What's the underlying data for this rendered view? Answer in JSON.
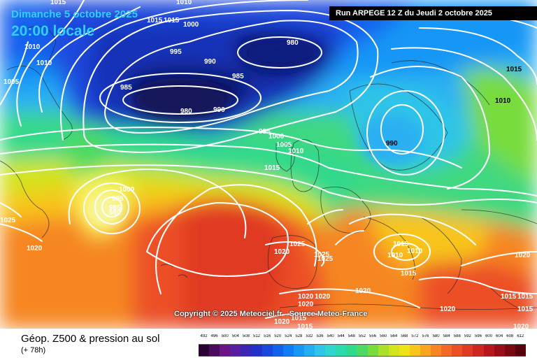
{
  "header": {
    "date": "Dimanche 5 octobre 2025",
    "time": "20:00 locale",
    "run": "Run ARPEGE 12 Z du Jeudi 2 octobre 2025"
  },
  "map": {
    "copyright": "Copyright © 2025 Meteociel.fr - Source Meteo-France",
    "pressure_labels": [
      {
        "id": "l1",
        "text": "1015",
        "color": "white"
      },
      {
        "id": "l2",
        "text": "1010",
        "color": "white"
      },
      {
        "id": "l3",
        "text": "1015",
        "color": "white"
      },
      {
        "id": "l4",
        "text": "1015",
        "color": "white"
      },
      {
        "id": "l5",
        "text": "1000",
        "color": "white"
      },
      {
        "id": "l6",
        "text": "1010",
        "color": "white"
      },
      {
        "id": "l7",
        "text": "1010",
        "color": "white"
      },
      {
        "id": "l8",
        "text": "1005",
        "color": "white"
      },
      {
        "id": "l9",
        "text": "995",
        "color": "white"
      },
      {
        "id": "l10",
        "text": "990",
        "color": "white"
      },
      {
        "id": "l11",
        "text": "985",
        "color": "white"
      },
      {
        "id": "l12",
        "text": "980",
        "color": "white"
      },
      {
        "id": "l13",
        "text": "985",
        "color": "white"
      },
      {
        "id": "l14",
        "text": "980",
        "color": "white"
      },
      {
        "id": "l15",
        "text": "990",
        "color": "white"
      },
      {
        "id": "l16",
        "text": "995",
        "color": "white"
      },
      {
        "id": "l17",
        "text": "1000",
        "color": "white"
      },
      {
        "id": "l18",
        "text": "1005",
        "color": "white"
      },
      {
        "id": "l19",
        "text": "1010",
        "color": "white"
      },
      {
        "id": "l20",
        "text": "1015",
        "color": "white"
      },
      {
        "id": "l21",
        "text": "990",
        "color": "dark"
      },
      {
        "id": "l22",
        "text": "1015",
        "color": "dark"
      },
      {
        "id": "l23",
        "text": "1010",
        "color": "dark"
      },
      {
        "id": "l24",
        "text": "1000",
        "color": "white"
      },
      {
        "id": "l25",
        "text": "995",
        "color": "white"
      },
      {
        "id": "l26",
        "text": "985",
        "color": "white"
      },
      {
        "id": "l27",
        "text": "980",
        "color": "white"
      },
      {
        "id": "l28",
        "text": "1025",
        "color": "white"
      },
      {
        "id": "l29",
        "text": "1020",
        "color": "white"
      },
      {
        "id": "l30",
        "text": "1025",
        "color": "white"
      },
      {
        "id": "l31",
        "text": "1020",
        "color": "white"
      },
      {
        "id": "l32",
        "text": "1025",
        "color": "white"
      },
      {
        "id": "l33",
        "text": "1025",
        "color": "white"
      },
      {
        "id": "l34",
        "text": "1015",
        "color": "white"
      },
      {
        "id": "l35",
        "text": "1010",
        "color": "white"
      },
      {
        "id": "l36",
        "text": "1010",
        "color": "white"
      },
      {
        "id": "l37",
        "text": "1015",
        "color": "white"
      },
      {
        "id": "l38",
        "text": "1020",
        "color": "white"
      },
      {
        "id": "l39",
        "text": "1020",
        "color": "white"
      },
      {
        "id": "l40",
        "text": "1020",
        "color": "white"
      },
      {
        "id": "l41",
        "text": "1020",
        "color": "white"
      },
      {
        "id": "l42",
        "text": "1020",
        "color": "white"
      },
      {
        "id": "l43",
        "text": "1015",
        "color": "white"
      },
      {
        "id": "l44",
        "text": "1015",
        "color": "white"
      },
      {
        "id": "l45",
        "text": "1020",
        "color": "white"
      },
      {
        "id": "l46",
        "text": "1020",
        "color": "white"
      },
      {
        "id": "l47",
        "text": "1015",
        "color": "white"
      },
      {
        "id": "l48",
        "text": "1015",
        "color": "white"
      },
      {
        "id": "l49",
        "text": "1015",
        "color": "white"
      },
      {
        "id": "l50",
        "text": "1020",
        "color": "white"
      }
    ]
  },
  "footer": {
    "title": "Géop. Z500 & pression au sol",
    "lead_time": "(+ 78h)"
  },
  "legend": {
    "labels": [
      "492",
      "496",
      "500",
      "504",
      "508",
      "512",
      "516",
      "520",
      "524",
      "528",
      "532",
      "536",
      "540",
      "544",
      "548",
      "552",
      "556",
      "560",
      "564",
      "568",
      "572",
      "576",
      "580",
      "584",
      "588",
      "592",
      "596",
      "600",
      "604",
      "608",
      "612"
    ],
    "colors": [
      "#2b0033",
      "#4a0a5e",
      "#6a1486",
      "#5a1fa0",
      "#3c24b5",
      "#2232c8",
      "#1a48dd",
      "#1260ee",
      "#0f7cf5",
      "#1796f6",
      "#23adf2",
      "#2fc4e8",
      "#30d5cf",
      "#2adbae",
      "#30d98c",
      "#4cd964",
      "#78dc3e",
      "#a8e02a",
      "#d2e41c",
      "#efe217",
      "#f8c51a",
      "#f9a61e",
      "#f68622",
      "#f26a25",
      "#ec5026",
      "#e03a24",
      "#cf2620",
      "#b8161b",
      "#9a0c16",
      "#780812",
      "#55040c"
    ]
  },
  "colors": {
    "deep_low": "#0b1466",
    "low": "#1a36d0",
    "mid": "#2ab0f2",
    "neutral": "#3fd880",
    "high": "#f7b21b",
    "ridge": "#ec5026"
  }
}
